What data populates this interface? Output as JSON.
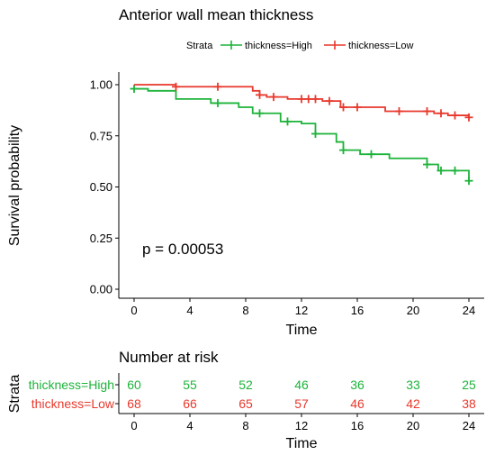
{
  "chart_data": [
    {
      "type": "line",
      "subtype": "kaplan-meier",
      "title": "Anterior wall mean thickness",
      "xlabel": "Time",
      "ylabel": "Survival probability",
      "xlim": [
        0,
        24
      ],
      "ylim": [
        0,
        1
      ],
      "x_ticks": [
        "0",
        "4",
        "8",
        "12",
        "16",
        "20",
        "24"
      ],
      "y_ticks": [
        "0.00",
        "0.25",
        "0.50",
        "0.75",
        "1.00"
      ],
      "legend": {
        "title": "Strata",
        "position": "top"
      },
      "annotation": "p = 0.00053",
      "grid": false,
      "series": [
        {
          "name": "thickness=High",
          "color": "#1db33a",
          "steps": [
            [
              0,
              0.98
            ],
            [
              1,
              0.97
            ],
            [
              3,
              0.93
            ],
            [
              5.5,
              0.91
            ],
            [
              7.5,
              0.89
            ],
            [
              8.5,
              0.86
            ],
            [
              10.5,
              0.82
            ],
            [
              12,
              0.81
            ],
            [
              13,
              0.76
            ],
            [
              14.5,
              0.72
            ],
            [
              15,
              0.68
            ],
            [
              16.2,
              0.66
            ],
            [
              18.3,
              0.64
            ],
            [
              21,
              0.61
            ],
            [
              21.8,
              0.58
            ],
            [
              24,
              0.53
            ]
          ],
          "censor_times": [
            0,
            6,
            9,
            11,
            13,
            15,
            17,
            21,
            22,
            23,
            24
          ]
        },
        {
          "name": "thickness=Low",
          "color": "#e8392d",
          "steps": [
            [
              0,
              1.0
            ],
            [
              3,
              0.99
            ],
            [
              8.5,
              0.97
            ],
            [
              9,
              0.95
            ],
            [
              9.5,
              0.94
            ],
            [
              11,
              0.93
            ],
            [
              13.5,
              0.92
            ],
            [
              14.8,
              0.89
            ],
            [
              18,
              0.87
            ],
            [
              21.5,
              0.86
            ],
            [
              22.5,
              0.85
            ],
            [
              24,
              0.84
            ]
          ],
          "censor_times": [
            3,
            6,
            9,
            10,
            12,
            12.5,
            13,
            14,
            15,
            16,
            19,
            21,
            22,
            23,
            24
          ]
        }
      ]
    },
    {
      "type": "table",
      "title": "Number at risk",
      "xlabel": "Time",
      "ylabel": "Strata",
      "x_ticks": [
        "0",
        "4",
        "8",
        "12",
        "16",
        "20",
        "24"
      ],
      "rows": [
        {
          "name": "thickness=High",
          "color": "#1db33a",
          "values": [
            60,
            55,
            52,
            46,
            36,
            33,
            25
          ]
        },
        {
          "name": "thickness=Low",
          "color": "#e8392d",
          "values": [
            68,
            66,
            65,
            57,
            46,
            42,
            38
          ]
        }
      ]
    }
  ]
}
